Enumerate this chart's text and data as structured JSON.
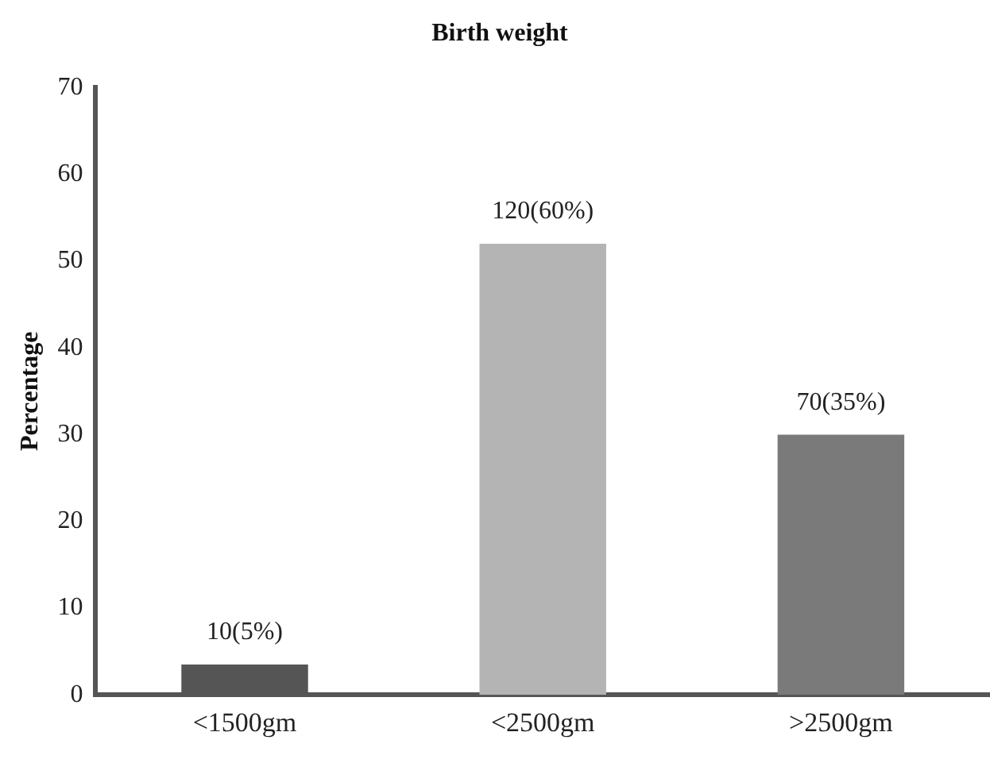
{
  "chart_data": {
    "type": "bar",
    "title": "Birth weight",
    "ylabel": "Percentage",
    "categories": [
      "<1500gm",
      "<2500gm",
      ">2500gm"
    ],
    "values": [
      3.5,
      52,
      30
    ],
    "colors": [
      "#555555",
      "#b4b4b4",
      "#7a7a7a"
    ],
    "annotations": [
      {
        "text": "10(5%)",
        "x": "<1500gm",
        "y": 3.5
      },
      {
        "text": "120(60%)",
        "x": "<2500gm",
        "y": 52
      },
      {
        "text": "70(35%)",
        "x": ">2500gm",
        "y": 30
      }
    ],
    "ylim": [
      0,
      70
    ],
    "yticks": [
      0,
      10,
      20,
      30,
      40,
      50,
      60,
      70
    ],
    "grid": false,
    "legend": false
  }
}
